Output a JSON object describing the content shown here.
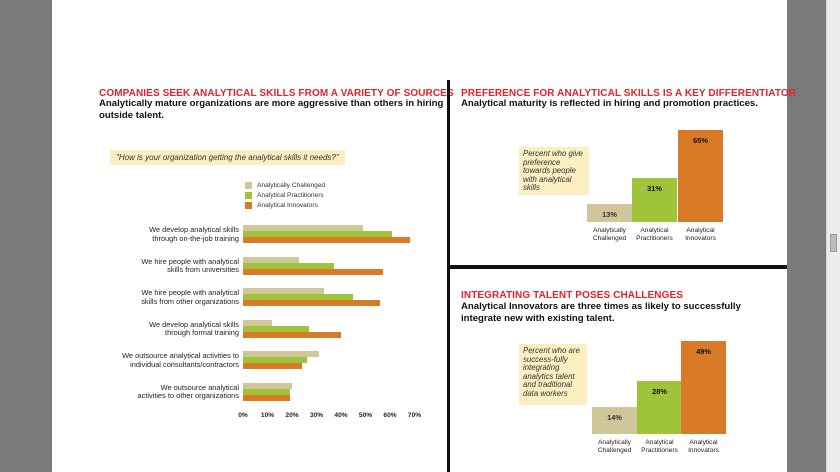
{
  "left_panel": {
    "title": "COMPANIES SEEK ANALYTICAL SKILLS FROM A VARIETY OF SOURCES",
    "subtitle": "Analytically mature organizations are more aggressive than others in hiring outside talent.",
    "question": "\"How is your organization getting the analytical skills it needs?\""
  },
  "top_right_panel": {
    "title": "PREFERENCE FOR ANALYTICAL SKILLS IS A KEY DIFFERENTIATOR",
    "subtitle": "Analytical maturity is reflected in hiring and promotion practices.",
    "note": "Percent who give preference towards people with analytical skills"
  },
  "bottom_right_panel": {
    "title": "INTEGRATING TALENT POSES CHALLENGES",
    "subtitle": "Analytical Innovators are three times as likely to successfully integrate new with existing talent.",
    "note": "Percent who are success-fully integrating analytics talent and traditional data workers"
  },
  "colors": {
    "challenged": "#cfc699",
    "practitioners": "#9fc43a",
    "innovators": "#d97a28",
    "accent_red": "#e8202a"
  },
  "chart_data": [
    {
      "type": "bar",
      "orientation": "horizontal",
      "title": "How is your organization getting the analytical skills it needs?",
      "categories": [
        "We develop analytical skills through on-the-job training",
        "We hire people with analytical skills from universities",
        "We hire people with analytical skills from other organizations",
        "We develop analytical skills through formal training",
        "We outsource analytical activities to individual consultants/contractors",
        "We outsource analytical activities to other organizations"
      ],
      "category_lines": [
        [
          "We develop analytical skills",
          "through on-the-job training"
        ],
        [
          "We hire people with analytical",
          "skills from universities"
        ],
        [
          "We hire people with analytical",
          "skills from other organizations"
        ],
        [
          "We develop analytical skills",
          "through formal training"
        ],
        [
          "We outsource analytical activities to",
          "individual consultants/contractors"
        ],
        [
          "We outsource analytical",
          "activities to other organizations"
        ]
      ],
      "series": [
        {
          "name": "Analytically Challenged",
          "values": [
            49,
            23,
            33,
            12,
            31,
            20
          ]
        },
        {
          "name": "Analytical Practitioners",
          "values": [
            61,
            37,
            45,
            27,
            26,
            19
          ]
        },
        {
          "name": "Analytical Innovators",
          "values": [
            68,
            57,
            56,
            40,
            24,
            19
          ]
        }
      ],
      "xlim": [
        0,
        70
      ],
      "xticks": [
        "0%",
        "10%",
        "20%",
        "30%",
        "40%",
        "50%",
        "60%",
        "70%"
      ],
      "legend": "top-right"
    },
    {
      "type": "bar",
      "title": "Percent who give preference towards people with analytical skills",
      "categories": [
        [
          "Analytically",
          "Challenged"
        ],
        [
          "Analytical",
          "Practitioners"
        ],
        [
          "Analytical",
          "Innovators"
        ]
      ],
      "values": [
        13,
        31,
        65
      ],
      "labels": [
        "13%",
        "31%",
        "65%"
      ],
      "ylim": [
        0,
        65
      ]
    },
    {
      "type": "bar",
      "title": "Percent who are successfully integrating analytics talent and traditional data workers",
      "categories": [
        [
          "Analytically",
          "Challenged"
        ],
        [
          "Analytical",
          "Practitioners"
        ],
        [
          "Analytical",
          "Innovators"
        ]
      ],
      "values": [
        14,
        28,
        49
      ],
      "labels": [
        "14%",
        "28%",
        "49%"
      ],
      "ylim": [
        0,
        49
      ]
    }
  ]
}
